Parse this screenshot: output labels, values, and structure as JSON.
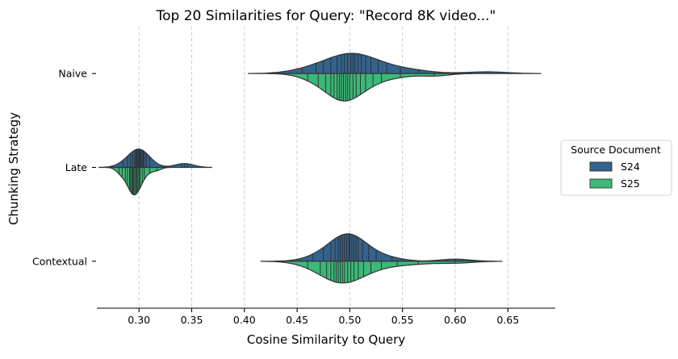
{
  "chart_data": {
    "type": "violin",
    "title": "Top 20 Similarities for Query: \"Record 8K video...\"",
    "xlabel": "Cosine Similarity to Query",
    "ylabel": "Chunking Strategy",
    "xlim": [
      0.26,
      0.695
    ],
    "xticks": [
      0.3,
      0.35,
      0.4,
      0.45,
      0.5,
      0.55,
      0.6,
      0.65
    ],
    "xtick_labels": [
      "0.30",
      "0.35",
      "0.40",
      "0.45",
      "0.50",
      "0.55",
      "0.60",
      "0.65"
    ],
    "grid_x": true,
    "categories": [
      "Naive",
      "Late",
      "Contextual"
    ],
    "split": true,
    "inner": "stick",
    "legend": {
      "title": "Source Document",
      "placement": "right",
      "entries": [
        {
          "name": "S24",
          "color": "#33638d"
        },
        {
          "name": "S25",
          "color": "#3cb878"
        }
      ]
    },
    "series": [
      {
        "name": "S24",
        "color": "#33638d",
        "values": {
          "Naive": [
            0.455,
            0.468,
            0.475,
            0.482,
            0.488,
            0.492,
            0.495,
            0.498,
            0.501,
            0.503,
            0.505,
            0.508,
            0.511,
            0.515,
            0.52,
            0.527,
            0.535,
            0.548,
            0.565,
            0.63
          ],
          "Late": [
            0.285,
            0.289,
            0.292,
            0.294,
            0.296,
            0.297,
            0.298,
            0.299,
            0.3,
            0.3,
            0.301,
            0.302,
            0.303,
            0.304,
            0.305,
            0.307,
            0.31,
            0.34,
            0.343,
            0.346
          ],
          "Contextual": [
            0.465,
            0.475,
            0.482,
            0.486,
            0.489,
            0.491,
            0.493,
            0.495,
            0.497,
            0.499,
            0.5,
            0.502,
            0.504,
            0.506,
            0.508,
            0.512,
            0.518,
            0.525,
            0.54,
            0.6
          ]
        }
      },
      {
        "name": "S25",
        "color": "#3cb878",
        "values": {
          "Naive": [
            0.46,
            0.47,
            0.477,
            0.482,
            0.485,
            0.488,
            0.49,
            0.492,
            0.494,
            0.496,
            0.498,
            0.5,
            0.503,
            0.506,
            0.51,
            0.515,
            0.522,
            0.53,
            0.548,
            0.58
          ],
          "Late": [
            0.281,
            0.284,
            0.287,
            0.289,
            0.291,
            0.292,
            0.293,
            0.294,
            0.294,
            0.295,
            0.296,
            0.297,
            0.298,
            0.299,
            0.3,
            0.301,
            0.303,
            0.305,
            0.31,
            0.317
          ],
          "Contextual": [
            0.46,
            0.472,
            0.478,
            0.482,
            0.485,
            0.487,
            0.489,
            0.491,
            0.493,
            0.495,
            0.498,
            0.501,
            0.504,
            0.508,
            0.513,
            0.52,
            0.53,
            0.545,
            0.565,
            0.6
          ]
        }
      }
    ]
  }
}
